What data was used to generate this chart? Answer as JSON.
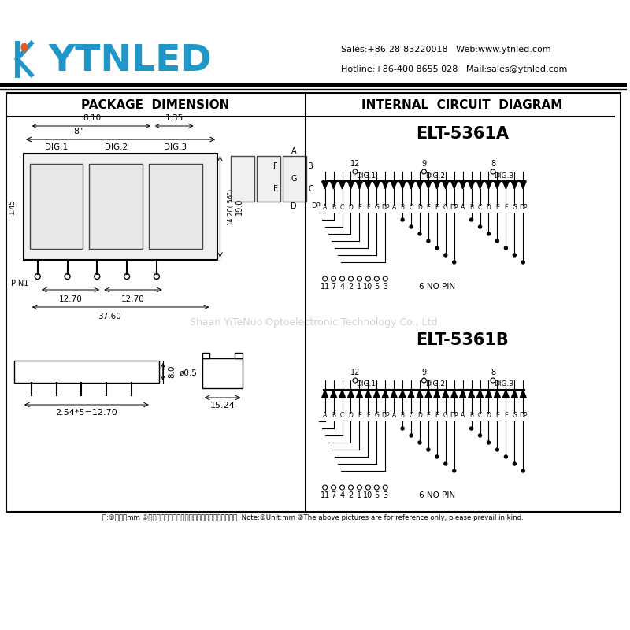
{
  "bg_color": "#ffffff",
  "border_color": "#000000",
  "title": "YTNLED",
  "sales_text": "Sales:+86-28-83220018   Web:www.ytnled.com",
  "hotline_text": "Hotline:+86-400 8655 028   Mail:sales@ytnled.com",
  "pkg_dim_title": "PACKAGE  DIMENSION",
  "circuit_title": "INTERNAL  CIRCUIT  DIAGRAM",
  "model_a": "ELT-5361A",
  "model_b": "ELT-5361B",
  "watermark": "Shaan YiTeNuo Optoelectronic Technology Co., Ltd",
  "note_text": "注:①单位：mm ②以上图形、尺寸、原理仅供参考，请以实物为准。  Note:①Unit:mm ②The above pictures are for reference only, please prevail in kind.",
  "blue_color": "#2196C8",
  "orange_color": "#E05A20",
  "dim_color": "#444444",
  "pin_labels": [
    "A",
    "B",
    "C",
    "D",
    "E",
    "F",
    "G",
    "DP"
  ],
  "pin_nums_bot": [
    "11",
    "7",
    "4",
    "2",
    "1",
    "10",
    "5",
    "3"
  ]
}
